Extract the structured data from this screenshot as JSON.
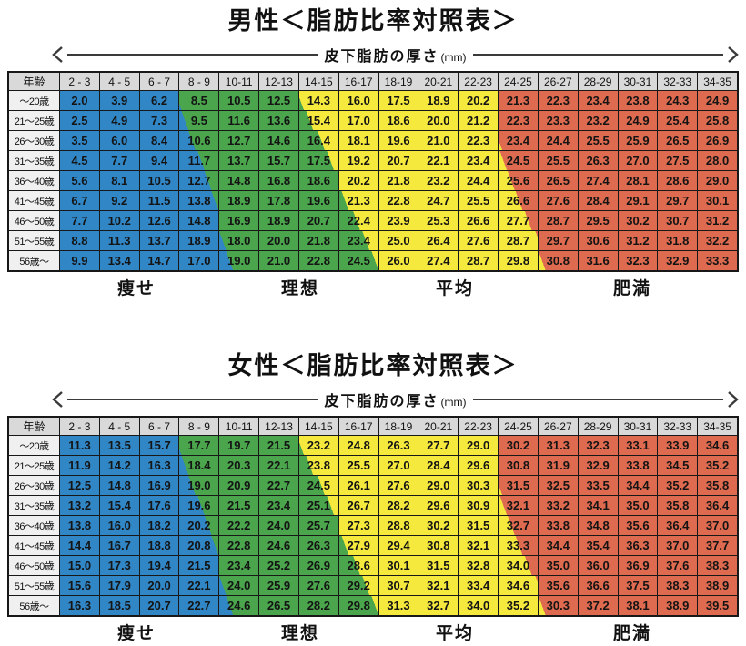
{
  "colors": {
    "blue": "#3186c6",
    "green": "#4aa54c",
    "yellow": "#f5e93e",
    "red": "#de6a4f",
    "header_bg": "#d9d9d9",
    "row_header_bg": "#f0f0f0",
    "grid_line": "#181818",
    "arrow": "#3a3a3a"
  },
  "bands": {
    "order": [
      "blue",
      "green",
      "yellow",
      "red"
    ],
    "labels": [
      "痩せ",
      "理想",
      "平均",
      "肥満"
    ],
    "boundaries": [
      [
        3.05,
        3.2,
        3.35,
        3.55,
        3.7,
        3.85,
        4.0,
        4.15,
        4.3
      ],
      [
        6.1,
        6.3,
        6.55,
        6.75,
        7.0,
        7.2,
        7.45,
        7.65,
        7.85
      ],
      [
        11.0,
        11.02,
        11.08,
        11.18,
        11.35,
        11.52,
        11.72,
        11.95,
        12.15
      ]
    ]
  },
  "chart_data": {
    "type": "table",
    "tables": [
      {
        "title": "男性＜脂肪比率対照表＞",
        "axis_label": "皮下脂肪の厚さ",
        "axis_unit": "(mm)",
        "corner_label": "年齢",
        "col_headers": [
          "2 - 3",
          "4 - 5",
          "6 - 7",
          "8 - 9",
          "10-11",
          "12-13",
          "14-15",
          "16-17",
          "18-19",
          "20-21",
          "22-23",
          "24-25",
          "26-27",
          "28-29",
          "30-31",
          "32-33",
          "34-35"
        ],
        "row_headers": [
          "～20歳",
          "21～25歳",
          "26～30歳",
          "31～35歳",
          "36～40歳",
          "41～45歳",
          "46～50歳",
          "51～55歳",
          "56歳～"
        ],
        "rows": [
          [
            "2.0",
            "3.9",
            "6.2",
            "8.5",
            "10.5",
            "12.5",
            "14.3",
            "16.0",
            "17.5",
            "18.9",
            "20.2",
            "21.3",
            "22.3",
            "23.4",
            "23.8",
            "24.3",
            "24.9"
          ],
          [
            "2.5",
            "4.9",
            "7.3",
            "9.5",
            "11.6",
            "13.6",
            "15.4",
            "17.0",
            "18.6",
            "20.0",
            "21.2",
            "22.3",
            "23.3",
            "23.2",
            "24.9",
            "25.4",
            "25.8"
          ],
          [
            "3.5",
            "6.0",
            "8.4",
            "10.6",
            "12.7",
            "14.6",
            "16.4",
            "18.1",
            "19.6",
            "21.0",
            "22.3",
            "23.4",
            "24.4",
            "25.5",
            "25.9",
            "26.5",
            "26.9"
          ],
          [
            "4.5",
            "7.7",
            "9.4",
            "11.7",
            "13.7",
            "15.7",
            "17.5",
            "19.2",
            "20.7",
            "22.1",
            "23.4",
            "24.5",
            "25.5",
            "26.3",
            "27.0",
            "27.5",
            "28.0"
          ],
          [
            "5.6",
            "8.1",
            "10.5",
            "12.7",
            "14.8",
            "16.8",
            "18.6",
            "20.2",
            "21.8",
            "23.2",
            "24.4",
            "25.6",
            "26.5",
            "27.4",
            "28.1",
            "28.6",
            "29.0"
          ],
          [
            "6.7",
            "9.2",
            "11.5",
            "13.8",
            "18.9",
            "17.8",
            "19.6",
            "21.3",
            "22.8",
            "24.7",
            "25.5",
            "26.6",
            "27.6",
            "28.4",
            "29.1",
            "29.7",
            "30.1"
          ],
          [
            "7.7",
            "10.2",
            "12.6",
            "14.8",
            "16.9",
            "18.9",
            "20.7",
            "22.4",
            "23.9",
            "25.3",
            "26.6",
            "27.7",
            "28.7",
            "29.5",
            "30.2",
            "30.7",
            "31.2"
          ],
          [
            "8.8",
            "11.3",
            "13.7",
            "18.9",
            "18.0",
            "20.0",
            "21.8",
            "23.4",
            "25.0",
            "26.4",
            "27.6",
            "28.7",
            "29.7",
            "30.6",
            "31.2",
            "31.8",
            "32.2"
          ],
          [
            "9.9",
            "13.4",
            "14.7",
            "17.0",
            "19.0",
            "21.0",
            "22.8",
            "24.5",
            "26.0",
            "27.4",
            "28.7",
            "29.8",
            "30.8",
            "31.6",
            "32.3",
            "32.9",
            "33.3"
          ]
        ]
      },
      {
        "title": "女性＜脂肪比率対照表＞",
        "axis_label": "皮下脂肪の厚さ",
        "axis_unit": "(mm)",
        "corner_label": "年齢",
        "col_headers": [
          "2 - 3",
          "4 - 5",
          "6 - 7",
          "8 - 9",
          "10-11",
          "12-13",
          "14-15",
          "16-17",
          "18-19",
          "20-21",
          "22-23",
          "24-25",
          "26-27",
          "28-29",
          "30-31",
          "32-33",
          "34-35"
        ],
        "row_headers": [
          "～20歳",
          "21～25歳",
          "26～30歳",
          "31～35歳",
          "36～40歳",
          "41～45歳",
          "46～50歳",
          "51～55歳",
          "56歳～"
        ],
        "rows": [
          [
            "11.3",
            "13.5",
            "15.7",
            "17.7",
            "19.7",
            "21.5",
            "23.2",
            "24.8",
            "26.3",
            "27.7",
            "29.0",
            "30.2",
            "31.3",
            "32.3",
            "33.1",
            "33.9",
            "34.6"
          ],
          [
            "11.9",
            "14.2",
            "16.3",
            "18.4",
            "20.3",
            "22.1",
            "23.8",
            "25.5",
            "27.0",
            "28.4",
            "29.6",
            "30.8",
            "31.9",
            "32.9",
            "33.8",
            "34.5",
            "35.2"
          ],
          [
            "12.5",
            "14.8",
            "16.9",
            "19.0",
            "20.9",
            "22.7",
            "24.5",
            "26.1",
            "27.6",
            "29.0",
            "30.3",
            "31.5",
            "32.5",
            "33.5",
            "34.4",
            "35.2",
            "35.8"
          ],
          [
            "13.2",
            "15.4",
            "17.6",
            "19.6",
            "21.5",
            "23.4",
            "25.1",
            "26.7",
            "28.2",
            "29.6",
            "30.9",
            "32.1",
            "33.2",
            "34.1",
            "35.0",
            "35.8",
            "36.4"
          ],
          [
            "13.8",
            "16.0",
            "18.2",
            "20.2",
            "22.2",
            "24.0",
            "25.7",
            "27.3",
            "28.8",
            "30.2",
            "31.5",
            "32.7",
            "33.8",
            "34.8",
            "35.6",
            "36.4",
            "37.0"
          ],
          [
            "14.4",
            "16.7",
            "18.8",
            "20.8",
            "22.8",
            "24.6",
            "26.3",
            "27.9",
            "29.4",
            "30.8",
            "32.1",
            "33.3",
            "34.4",
            "35.4",
            "36.3",
            "37.0",
            "37.7"
          ],
          [
            "15.0",
            "17.3",
            "19.4",
            "21.5",
            "23.4",
            "25.2",
            "26.9",
            "28.6",
            "30.1",
            "31.5",
            "32.8",
            "34.0",
            "35.0",
            "36.0",
            "36.9",
            "37.6",
            "38.3"
          ],
          [
            "15.6",
            "17.9",
            "20.0",
            "22.1",
            "24.0",
            "25.9",
            "27.6",
            "29.2",
            "30.7",
            "32.1",
            "33.4",
            "34.6",
            "35.6",
            "36.6",
            "37.5",
            "38.3",
            "38.9"
          ],
          [
            "16.3",
            "18.5",
            "20.7",
            "22.7",
            "24.6",
            "26.5",
            "28.2",
            "29.8",
            "31.3",
            "32.7",
            "34.0",
            "35.2",
            "30.3",
            "37.2",
            "38.1",
            "38.9",
            "39.5"
          ]
        ]
      }
    ]
  }
}
